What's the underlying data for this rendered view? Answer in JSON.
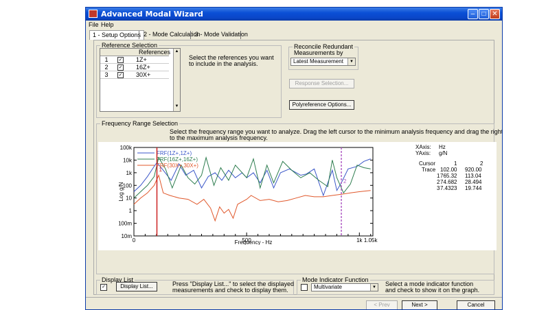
{
  "window": {
    "title": "Advanced Modal Wizard"
  },
  "menu": [
    "File",
    "Help"
  ],
  "tabs": [
    "1 - Setup Options",
    "2 - Mode Calculation",
    "3 - Mode Validation"
  ],
  "reference_selection": {
    "label": "Reference Selection",
    "column_header": "References",
    "rows": [
      {
        "num": "1",
        "checked": true,
        "ref": "1Z+"
      },
      {
        "num": "2",
        "checked": true,
        "ref": "16Z+"
      },
      {
        "num": "3",
        "checked": true,
        "ref": "30X+"
      }
    ],
    "instruction": "Select the references you want to include in the analysis."
  },
  "reconcile": {
    "label_line1": "Reconcile Redundant",
    "label_line2": "Measurements by",
    "selected": "Latest Measurement"
  },
  "buttons": {
    "response_selection": "Response Selection...",
    "polyreference_options": "Polyreference Options...",
    "display_list": "Display List...",
    "prev": "< Prev",
    "next": "Next >",
    "cancel": "Cancel"
  },
  "frequency_range": {
    "label": "Frequency Range Selection",
    "instruction_line1": "Select the frequency range you want to analyze. Drag the left cursor to the minimum analysis frequency and drag the right cursor",
    "instruction_line2": "to the maximum analysis frequency."
  },
  "display_list": {
    "label": "Display List",
    "checked": true,
    "instruction_line1": "Press \"Display List...\" to select the displayed",
    "instruction_line2": "measurements and check to display them."
  },
  "mode_indicator": {
    "label": "Mode Indicator Function",
    "checked": false,
    "selected": "Multivariate",
    "instruction_line1": "Select a mode indicator function",
    "instruction_line2": "and check to show it on the graph."
  },
  "cursor_info": {
    "xaxis_label": "XAxis:",
    "xaxis_unit": "Hz",
    "yaxis_label": "YAxis:",
    "yaxis_unit": "g/N",
    "header": {
      "name": "Cursor",
      "c1": "1",
      "c2": "2"
    },
    "rows": [
      {
        "name": "Trace",
        "c1": "102.00",
        "c2": "920.00"
      },
      {
        "name": "1",
        "c1": "765.32",
        "c2": "113.04"
      },
      {
        "name": "2",
        "c1": "74.682",
        "c2": "28.494"
      },
      {
        "name": "3",
        "c1": "7.4323",
        "c2": "19.744"
      }
    ]
  },
  "chart_data": {
    "type": "line",
    "xlabel": "Frequency - Hz",
    "ylabel": "Log g/N",
    "x_ticks": [
      "0",
      "500",
      "1k",
      "1.05k"
    ],
    "y_ticks": [
      "100k",
      "10k",
      "1k",
      "100",
      "10",
      "1",
      "100m",
      "10m"
    ],
    "xlim": [
      0,
      1060
    ],
    "ylim_log10": [
      -2,
      5
    ],
    "y_scale": "log",
    "cursors": [
      {
        "label": "1",
        "x": 102
      },
      {
        "label": "2",
        "x": 920
      }
    ],
    "series": [
      {
        "name": "FRF(1Z+,1Z+)",
        "color": "#3a56c8",
        "x": [
          0,
          30,
          60,
          90,
          102,
          130,
          165,
          200,
          230,
          265,
          300,
          330,
          360,
          390,
          420,
          450,
          480,
          500,
          530,
          560,
          590,
          620,
          650,
          690,
          740,
          765,
          800,
          840,
          880,
          900,
          920,
          950,
          990,
          1020,
          1050
        ],
        "y": [
          1.5,
          2.0,
          2.7,
          3.5,
          3.8,
          3.2,
          2.4,
          3.7,
          2.8,
          3.2,
          1.8,
          2.7,
          3.0,
          2.4,
          3.2,
          2.6,
          3.0,
          2.6,
          3.0,
          2.2,
          3.2,
          1.8,
          3.0,
          3.3,
          2.8,
          2.9,
          3.3,
          1.2,
          3.2,
          1.6,
          2.2,
          3.3,
          3.5,
          3.9,
          4.1
        ]
      },
      {
        "name": "FRF(16Z+,16Z+)",
        "color": "#2e7d4f",
        "x": [
          0,
          30,
          60,
          90,
          110,
          140,
          170,
          210,
          240,
          270,
          300,
          320,
          355,
          385,
          420,
          450,
          500,
          530,
          560,
          590,
          620,
          660,
          700,
          740,
          780,
          820,
          860,
          880,
          900,
          930,
          960,
          990,
          1020,
          1050
        ],
        "y": [
          1.0,
          1.5,
          2.0,
          2.7,
          4.2,
          3.3,
          1.8,
          3.6,
          2.6,
          2.1,
          2.8,
          4.2,
          2.0,
          3.4,
          2.4,
          3.6,
          2.6,
          4.1,
          1.8,
          3.6,
          2.2,
          3.9,
          3.2,
          2.6,
          3.0,
          2.4,
          1.9,
          4.0,
          2.6,
          1.4,
          2.1,
          3.6,
          3.4,
          3.3
        ]
      },
      {
        "name": "FRF(30X+,30X+)",
        "color": "#e0572a",
        "x": [
          0,
          30,
          60,
          90,
          110,
          130,
          160,
          200,
          240,
          280,
          310,
          340,
          360,
          380,
          400,
          420,
          440,
          460,
          480,
          500,
          520,
          560,
          600,
          640,
          680,
          720,
          760,
          800,
          840,
          880,
          920,
          960,
          1000,
          1050
        ],
        "y": [
          0.5,
          1.0,
          1.4,
          2.0,
          2.8,
          1.4,
          1.2,
          1.0,
          0.9,
          0.5,
          0.9,
          0.2,
          -0.8,
          0.3,
          -0.2,
          0.1,
          -0.6,
          0.5,
          0.7,
          0.9,
          1.2,
          0.8,
          0.9,
          0.7,
          0.8,
          1.0,
          1.2,
          1.1,
          1.1,
          1.2,
          1.3,
          1.4,
          1.5,
          1.6
        ]
      }
    ]
  }
}
